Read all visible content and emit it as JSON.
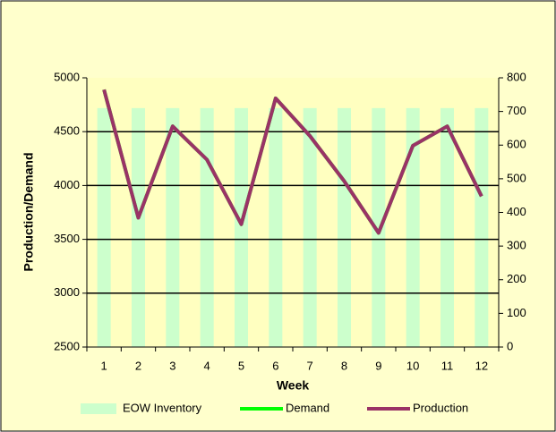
{
  "chart_data": {
    "type": "combo",
    "categories": [
      "1",
      "2",
      "3",
      "4",
      "5",
      "6",
      "7",
      "8",
      "9",
      "10",
      "11",
      "12"
    ],
    "series": [
      {
        "name": "EOW Inventory",
        "type": "bar",
        "axis": "y2",
        "color": "#ccffcc",
        "values": [
          710,
          710,
          710,
          710,
          710,
          710,
          710,
          710,
          710,
          710,
          710,
          710
        ]
      },
      {
        "name": "Demand",
        "type": "line",
        "color": "#00ff00",
        "values": [
          4890,
          3700,
          4550,
          4240,
          3640,
          4810,
          4460,
          4040,
          3560,
          4370,
          4550,
          3900
        ]
      },
      {
        "name": "Production",
        "type": "line",
        "color": "#993366",
        "values": [
          4890,
          3700,
          4550,
          4240,
          3640,
          4810,
          4460,
          4040,
          3560,
          4370,
          4550,
          3900
        ]
      }
    ],
    "xlabel": "Week",
    "ylabel": "Production/Demand",
    "ylim": [
      2500,
      5000
    ],
    "yticks": [
      2500,
      3000,
      3500,
      4000,
      4500,
      5000
    ],
    "y2lim": [
      0,
      800
    ],
    "y2ticks": [
      0,
      100,
      200,
      300,
      400,
      500,
      600,
      700,
      800
    ],
    "grid": true,
    "legend": "bottom"
  }
}
